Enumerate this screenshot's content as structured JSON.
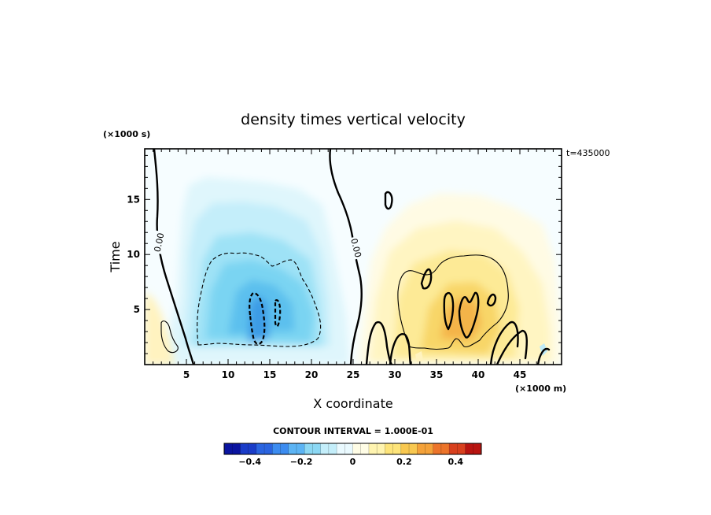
{
  "chart_data": {
    "type": "heatmap",
    "title": "density times vertical velocity",
    "xlabel": "X coordinate",
    "ylabel": "Time",
    "x_unit": "(×1000 m)",
    "y_unit": "(×1000 s)",
    "time_label": "t=435000",
    "xlim": [
      0,
      50
    ],
    "ylim": [
      0,
      19.6
    ],
    "x_ticks": [
      5,
      10,
      15,
      20,
      25,
      30,
      35,
      40,
      45
    ],
    "y_ticks": [
      5,
      10,
      15
    ],
    "contour_label": "0.00",
    "contour_interval_text": "CONTOUR INTERVAL = 1.000E-01",
    "colorbar": {
      "range": [
        -0.5,
        0.5
      ],
      "ticks": [
        -0.4,
        -0.2,
        0,
        0.2,
        0.4
      ],
      "tick_labels": [
        "−0.4",
        "−0.2",
        "0",
        "0.2",
        "0.4"
      ],
      "colors": [
        "#0a14a0",
        "#1a3cc8",
        "#2a64e0",
        "#3c8cf0",
        "#5cb4f4",
        "#8cd8f4",
        "#c4eefa",
        "#eafaff",
        "#fffde6",
        "#fff4b0",
        "#fde47a",
        "#f8c850",
        "#f4a23a",
        "#ec742a",
        "#d8401e",
        "#b81410"
      ]
    },
    "regions": [
      {
        "name": "negative core",
        "x_range": [
          6,
          22
        ],
        "t_range": [
          1.5,
          17
        ],
        "min_value": -0.3,
        "peak_x": 13.5,
        "peak_t": 3.5
      },
      {
        "name": "positive core",
        "x_range": [
          28,
          48
        ],
        "t_range": [
          0.5,
          16
        ],
        "max_value": 0.25,
        "peak_x": 38.5,
        "peak_t": 4.5
      },
      {
        "name": "weak positive",
        "x_range": [
          0,
          5
        ],
        "t_range": [
          0,
          6
        ],
        "max_value": 0.05
      }
    ]
  }
}
